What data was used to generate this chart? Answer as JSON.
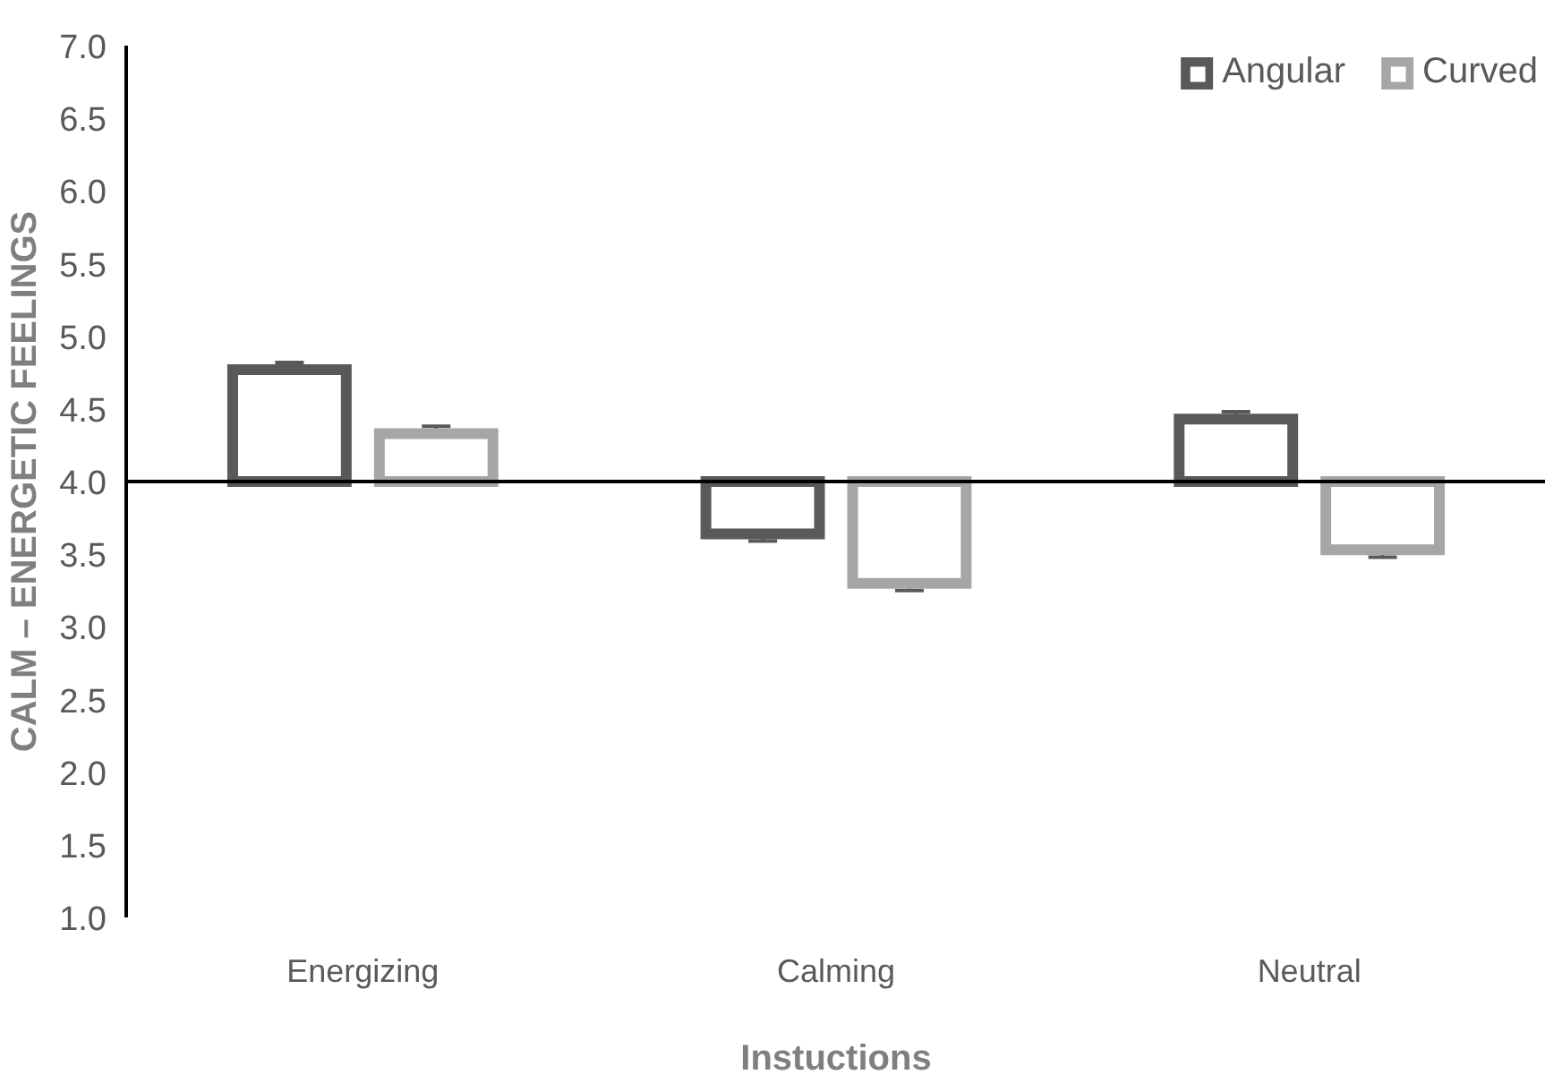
{
  "chart_data": {
    "type": "bar",
    "xlabel": "Instuctions",
    "ylabel": "CALM – ENERGETIC FEELINGS",
    "categories": [
      "Energizing",
      "Calming",
      "Neutral"
    ],
    "series": [
      {
        "name": "Angular",
        "color": "#595959",
        "values": [
          0.77,
          -0.36,
          0.43
        ],
        "base": [
          4,
          4,
          4
        ],
        "errors": [
          0.05,
          0.05,
          0.05
        ]
      },
      {
        "name": "Curved",
        "color": "#a6a6a6",
        "values": [
          0.33,
          -0.7,
          -0.47
        ],
        "base": [
          4,
          4,
          4
        ],
        "errors": [
          0.05,
          0.05,
          0.05
        ]
      }
    ],
    "ylim": [
      1.0,
      7.0
    ],
    "yticks": [
      {
        "value": 1,
        "label": "1.0"
      },
      {
        "value": 1.5,
        "label": "1.5"
      },
      {
        "value": 2,
        "label": "2.0"
      },
      {
        "value": 2.5,
        "label": "2.5"
      },
      {
        "value": 3,
        "label": "3.0"
      },
      {
        "value": 3.5,
        "label": "3.5"
      },
      {
        "value": 4,
        "label": "4.0"
      },
      {
        "value": 4.5,
        "label": "4.5"
      },
      {
        "value": 5,
        "label": "5.0"
      },
      {
        "value": 5.5,
        "label": "5.5"
      },
      {
        "value": 6,
        "label": "6.0"
      },
      {
        "value": 6.5,
        "label": "6.5"
      },
      {
        "value": 7,
        "label": "7.0"
      }
    ],
    "ref_lines": [
      {
        "axis": "y",
        "value": 4,
        "label": null,
        "color": "#000000"
      }
    ],
    "grid": false,
    "legend": "top right"
  }
}
